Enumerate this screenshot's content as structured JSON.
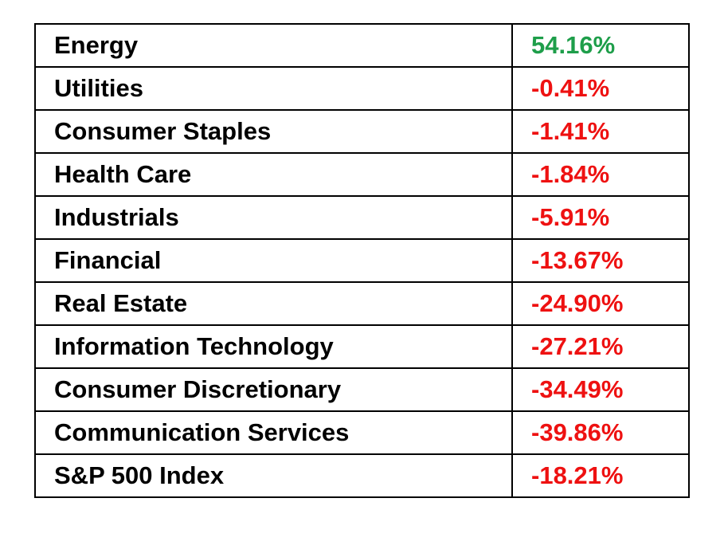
{
  "table": {
    "rows": [
      {
        "sector": "Energy",
        "change": "54.16%",
        "color": "#1e9e4a"
      },
      {
        "sector": "Utilities",
        "change": "-0.41%",
        "color": "#ee1111"
      },
      {
        "sector": "Consumer Staples",
        "change": "-1.41%",
        "color": "#ee1111"
      },
      {
        "sector": "Health Care",
        "change": "-1.84%",
        "color": "#ee1111"
      },
      {
        "sector": "Industrials",
        "change": "-5.91%",
        "color": "#ee1111"
      },
      {
        "sector": "Financial",
        "change": "-13.67%",
        "color": "#ee1111"
      },
      {
        "sector": "Real Estate",
        "change": "-24.90%",
        "color": "#ee1111"
      },
      {
        "sector": "Information Technology",
        "change": "-27.21%",
        "color": "#ee1111"
      },
      {
        "sector": "Consumer Discretionary",
        "change": "-34.49%",
        "color": "#ee1111"
      },
      {
        "sector": "Communication Services",
        "change": "-39.86%",
        "color": "#ee1111"
      },
      {
        "sector": "S&P 500 Index",
        "change": "-18.21%",
        "color": "#ee1111"
      }
    ]
  }
}
